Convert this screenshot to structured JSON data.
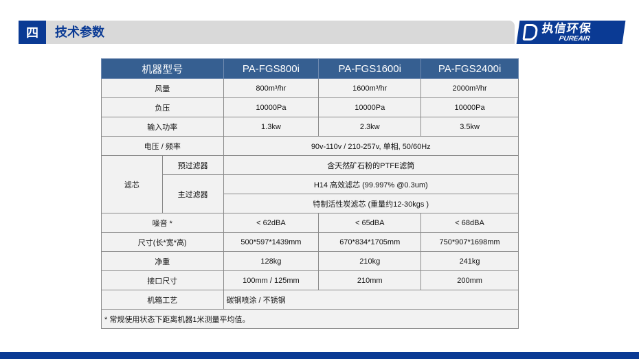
{
  "section": {
    "number": "四",
    "title": "技术参数"
  },
  "logo": {
    "cn": "执信环保",
    "en": "PUREAIR"
  },
  "colors": {
    "brand": "#0a3a94",
    "header": "#365f91"
  },
  "table": {
    "header": [
      "机器型号",
      "PA-FGS800i",
      "PA-FGS1600i",
      "PA-FGS2400i"
    ],
    "airflow": [
      "风量",
      "800m³/hr",
      "1600m³/hr",
      "2000m³/hr"
    ],
    "pressure": [
      "负压",
      "10000Pa",
      "10000Pa",
      "10000Pa"
    ],
    "power": [
      "输入功率",
      "1.3kw",
      "2.3kw",
      "3.5kw"
    ],
    "voltage": [
      "电压 / 频率",
      "90v-110v / 210-257v, 单相, 50/60Hz"
    ],
    "filter": {
      "label": "滤芯",
      "pre_label": "预过滤器",
      "pre": "含天然矿石粉的PTFE滤筒",
      "main_label": "主过滤器",
      "main1": "H14 高效滤芯 (99.997% @0.3um)",
      "main2": "特制活性炭滤芯 (重量约12-30kgs )"
    },
    "noise": [
      "噪音 *",
      "< 62dBA",
      "< 65dBA",
      "< 68dBA"
    ],
    "size": [
      "尺寸(长*宽*高)",
      "500*597*1439mm",
      "670*834*1705mm",
      "750*907*1698mm"
    ],
    "weight": [
      "净重",
      "128kg",
      "210kg",
      "241kg"
    ],
    "port": [
      "接口尺寸",
      "100mm / 125mm",
      "210mm",
      "200mm"
    ],
    "cabinet": [
      "机箱工艺",
      "碳钢喷涂 / 不锈钢"
    ],
    "footnote": "* 常规使用状态下距离机器1米测量平均值。"
  }
}
